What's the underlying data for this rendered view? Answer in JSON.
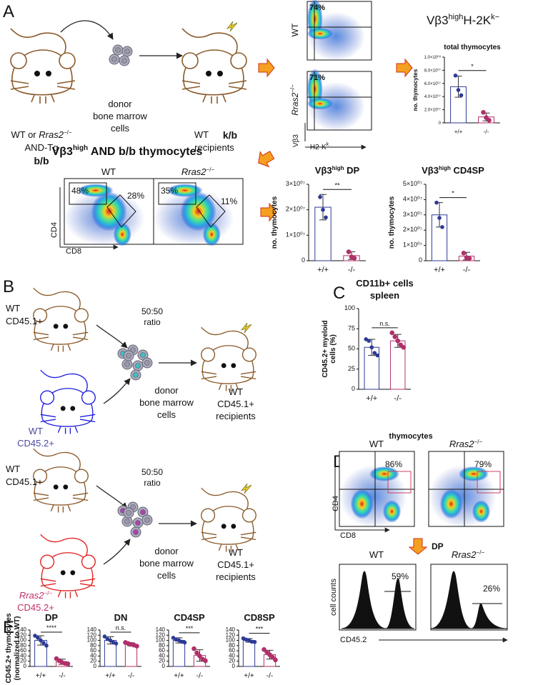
{
  "panel_labels": [
    "A",
    "B",
    "C",
    "D",
    "E"
  ],
  "panel_a": {
    "donor_mouse": {
      "line1": [
        "WT or ",
        "Rras2",
        "−/−"
      ],
      "line2": "AND-Tg",
      "line3": "b/b"
    },
    "donor_cells": [
      "donor",
      "bone marrow",
      "cells"
    ],
    "recipient": {
      "line1": [
        "WT",
        "k/b"
      ],
      "line2": "recipients"
    },
    "flow_top": {
      "rows": [
        {
          "label": [
            "WT"
          ],
          "percent": "74%"
        },
        {
          "label": [
            "Rras2",
            "−/−"
          ],
          "percent": "71%"
        }
      ],
      "y_axis": "Vβ3",
      "x_axis": [
        "H2-K",
        "k"
      ]
    },
    "subset_title": [
      "Vβ3",
      "high",
      "H-2K",
      "k−"
    ],
    "flow_bottom": {
      "title": [
        "Vβ3",
        "high",
        " AND b/b thymocytes"
      ],
      "plots": [
        {
          "label": [
            "WT"
          ],
          "percents": [
            "48%",
            "28%"
          ]
        },
        {
          "label": [
            "Rras2",
            "−/−"
          ],
          "percents": [
            "35%",
            "11%"
          ]
        }
      ],
      "y_axis": "CD4",
      "x_axis": "CD8"
    }
  },
  "panel_b": {
    "experiments": [
      {
        "host": [
          "WT",
          "CD45.1+"
        ],
        "donor": [
          [
            "WT"
          ],
          "CD45.2+"
        ],
        "ratio": [
          "50:50",
          "ratio"
        ],
        "cells": [
          "donor",
          "bone marrow",
          "cells"
        ],
        "recipient": [
          "WT",
          "CD45.1+",
          "recipients"
        ]
      },
      {
        "host": [
          "WT",
          "CD45.1+"
        ],
        "donor": [
          [
            "Rras2",
            "−/−"
          ],
          "CD45.2+"
        ],
        "ratio": [
          "50:50",
          "ratio"
        ],
        "cells": [
          "donor",
          "bone marrow",
          "cells"
        ],
        "recipient": [
          "WT",
          "CD45.1+",
          "recipients"
        ]
      }
    ]
  },
  "panel_d": {
    "title": "thymocytes",
    "plots": [
      {
        "label": [
          "WT"
        ],
        "percent": "86%"
      },
      {
        "label": [
          "Rras2",
          "−/−"
        ],
        "percent": "79%"
      }
    ],
    "y_axis": "CD4",
    "x_axis": "CD8",
    "gate": "DP",
    "histograms": [
      {
        "label": [
          "WT"
        ],
        "percent": "59%"
      },
      {
        "label": [
          "Rras2",
          "−/−"
        ],
        "percent": "26%"
      }
    ],
    "hist_y_axis": "cell counts",
    "hist_x_axis": "CD45.2"
  },
  "chart_data": [
    {
      "type": "bar",
      "title": [
        [
          "total thymocytes"
        ]
      ],
      "ylabel": [
        "no. thymocytes"
      ],
      "categories": [
        "+/+",
        "-/-"
      ],
      "colors": [
        "#2c3a96",
        "#b0306a"
      ],
      "values": [
        55000000,
        9000000
      ],
      "errors": [
        16000000,
        6000000
      ],
      "points": [
        [
          72000000,
          50000000,
          42000000
        ],
        [
          16000000,
          8000000,
          4000000
        ]
      ],
      "significance": "*",
      "ylim": [
        0,
        100000000
      ],
      "yticks": [
        0,
        {
          "value": 20000000,
          "label": "2.0×10⁰⁷"
        },
        {
          "value": 40000000,
          "label": "4.0×10⁰⁷"
        },
        {
          "value": 60000000,
          "label": "6.0×10⁰⁷"
        },
        {
          "value": 80000000,
          "label": "8.0×10⁰⁷"
        },
        {
          "value": 100000000,
          "label": "1.0×10⁰⁸"
        }
      ]
    },
    {
      "type": "bar",
      "title": [
        [
          "Vβ3",
          "high",
          " DP"
        ]
      ],
      "ylabel": [
        "no. thymocytes"
      ],
      "categories": [
        "+/+",
        "-/-"
      ],
      "colors": [
        "#2c3a96",
        "#b0306a"
      ],
      "values": [
        21000000,
        2000000
      ],
      "errors": [
        5000000,
        1500000
      ],
      "points": [
        [
          25000000,
          20000000,
          17000000
        ],
        [
          3500000,
          1500000,
          1000000
        ]
      ],
      "significance": "**",
      "ylim": [
        0,
        30000000
      ],
      "yticks": [
        0,
        {
          "value": 10000000,
          "label": "1×10⁰⁷"
        },
        {
          "value": 20000000,
          "label": "2×10⁰⁷"
        },
        {
          "value": 30000000,
          "label": "3×10⁰⁷"
        }
      ]
    },
    {
      "type": "bar",
      "title": [
        [
          "Vβ3",
          "high",
          " CD4SP"
        ]
      ],
      "ylabel": [
        "no. thymocytes"
      ],
      "categories": [
        "+/+",
        "-/-"
      ],
      "colors": [
        "#2c3a96",
        "#b0306a"
      ],
      "values": [
        30000000,
        3000000
      ],
      "errors": [
        8000000,
        2500000
      ],
      "points": [
        [
          38000000,
          28000000,
          22000000
        ],
        [
          5000000,
          2000000,
          1500000
        ]
      ],
      "significance": "*",
      "ylim": [
        0,
        50000000
      ],
      "yticks": [
        0,
        {
          "value": 10000000,
          "label": "1×10⁰⁷"
        },
        {
          "value": 20000000,
          "label": "2×10⁰⁷"
        },
        {
          "value": 30000000,
          "label": "3×10⁰⁷"
        },
        {
          "value": 40000000,
          "label": "4×10⁰⁷"
        },
        {
          "value": 50000000,
          "label": "5×10⁰⁷"
        }
      ]
    },
    {
      "type": "bar",
      "title": [
        [
          "CD11b+ cells"
        ],
        [
          "spleen"
        ]
      ],
      "ylabel": [
        "CD45.2+ myeloid",
        "cells (%)"
      ],
      "categories": [
        "+/+",
        "-/-"
      ],
      "colors": [
        "#2c3a96",
        "#b0306a"
      ],
      "values": [
        52,
        60
      ],
      "errors": [
        10,
        8
      ],
      "points": [
        [
          62,
          60,
          52,
          45,
          42
        ],
        [
          70,
          65,
          60,
          55,
          52
        ]
      ],
      "significance": "n.s.",
      "ylim": [
        0,
        100
      ],
      "yticks": [
        0,
        25,
        50,
        75,
        100
      ]
    },
    {
      "type": "bar",
      "title": [
        [
          "DP"
        ]
      ],
      "ylabel": [
        "CD45.2+ thymocytes",
        "(normalized to WT)"
      ],
      "categories": [
        "+/+",
        "-/-"
      ],
      "colors": [
        "#2c3a96",
        "#b0306a"
      ],
      "values": [
        100,
        18
      ],
      "errors": [
        18,
        10
      ],
      "points": [
        [
          118,
          110,
          100,
          90,
          80
        ],
        [
          30,
          22,
          15,
          12,
          10
        ]
      ],
      "significance": "****",
      "ylim": [
        0,
        140
      ],
      "yticks": [
        0,
        20,
        40,
        60,
        80,
        100,
        120,
        140
      ]
    },
    {
      "type": "bar",
      "title": [
        [
          "DN"
        ]
      ],
      "categories": [
        "+/+",
        "-/-"
      ],
      "colors": [
        "#2c3a96",
        "#b0306a"
      ],
      "values": [
        100,
        85
      ],
      "errors": [
        14,
        6
      ],
      "points": [
        [
          115,
          105,
          100,
          92,
          88
        ],
        [
          92,
          88,
          85,
          82,
          78
        ]
      ],
      "significance": "n.s.",
      "ylim": [
        0,
        140
      ],
      "yticks": [
        0,
        20,
        40,
        60,
        80,
        100,
        120,
        140
      ]
    },
    {
      "type": "bar",
      "title": [
        [
          "CD4SP"
        ]
      ],
      "categories": [
        "+/+",
        "-/-"
      ],
      "colors": [
        "#2c3a96",
        "#b0306a"
      ],
      "values": [
        100,
        42
      ],
      "errors": [
        10,
        22
      ],
      "points": [
        [
          110,
          103,
          100,
          95,
          92
        ],
        [
          68,
          52,
          40,
          28,
          22
        ]
      ],
      "significance": "***",
      "ylim": [
        0,
        140
      ],
      "yticks": [
        0,
        20,
        40,
        60,
        80,
        100,
        120,
        140
      ]
    },
    {
      "type": "bar",
      "title": [
        [
          "CD8SP"
        ]
      ],
      "categories": [
        "+/+",
        "-/-"
      ],
      "colors": [
        "#2c3a96",
        "#b0306a"
      ],
      "values": [
        100,
        45
      ],
      "errors": [
        7,
        17
      ],
      "points": [
        [
          108,
          103,
          100,
          95,
          94
        ],
        [
          65,
          55,
          45,
          35,
          25
        ]
      ],
      "significance": "***",
      "ylim": [
        0,
        140
      ],
      "yticks": [
        0,
        20,
        40,
        60,
        80,
        100,
        120,
        140
      ]
    }
  ]
}
